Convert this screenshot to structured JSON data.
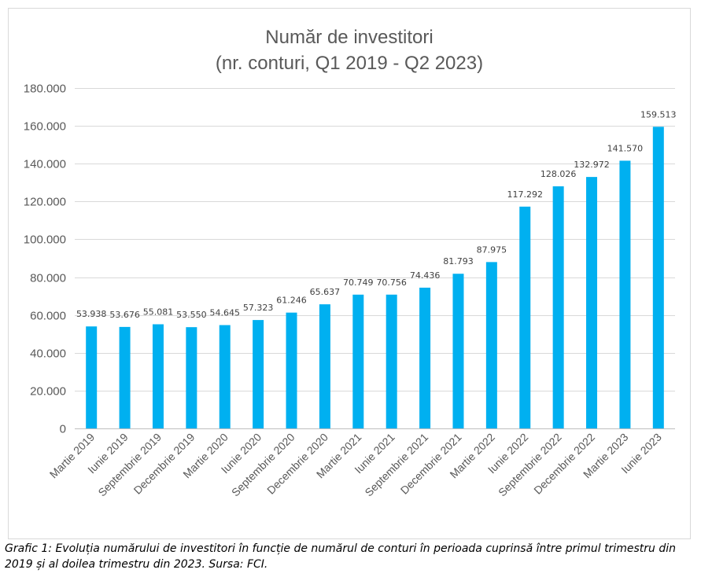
{
  "chart_title_line1": "Număr de investitori",
  "chart_title_line2": "(nr. conturi, Q1 2019 - Q2 2023)",
  "caption": "Grafic 1: Evoluția numărului de investitori în funcție de numărul de conturi în perioada cuprinsă între primul trimestru din 2019 și al doilea trimestru din 2023. Sursa: FCI.",
  "colors": {
    "bar": "#00b0f0",
    "grid": "#d9d9d9",
    "axis_text": "#595959",
    "label_text": "#404040"
  },
  "chart_data": {
    "type": "bar",
    "title": "Număr de investitori (nr. conturi, Q1 2019 - Q2 2023)",
    "xlabel": "",
    "ylabel": "",
    "ylim": [
      0,
      180000
    ],
    "yticks": [
      0,
      20000,
      40000,
      60000,
      80000,
      100000,
      120000,
      140000,
      160000,
      180000
    ],
    "ytick_labels": [
      "0",
      "20.000",
      "40.000",
      "60.000",
      "80.000",
      "100.000",
      "120.000",
      "140.000",
      "160.000",
      "180.000"
    ],
    "grid": true,
    "legend": "none",
    "categories": [
      "Martie 2019",
      "Iunie 2019",
      "Septembrie 2019",
      "Decembrie 2019",
      "Martie 2020",
      "Iunie 2020",
      "Septembrie 2020",
      "Decembrie 2020",
      "Martie 2021",
      "Iunie 2021",
      "Septembrie 2021",
      "Decembrie 2021",
      "Martie 2022",
      "Iunie 2022",
      "Septembrie 2022",
      "Decembrie 2022",
      "Martie 2023",
      "Iunie 2023"
    ],
    "values": [
      53938,
      53676,
      55081,
      53550,
      54645,
      57323,
      61246,
      65637,
      70749,
      70756,
      74436,
      81793,
      87975,
      117292,
      128026,
      132972,
      141570,
      159513
    ],
    "data_labels": [
      "53.938",
      "53.676",
      "55.081",
      "53.550",
      "54.645",
      "57.323",
      "61.246",
      "65.637",
      "70.749",
      "70.756",
      "74.436",
      "81.793",
      "87.975",
      "117.292",
      "128.026",
      "132.972",
      "141.570",
      "159.513"
    ]
  }
}
